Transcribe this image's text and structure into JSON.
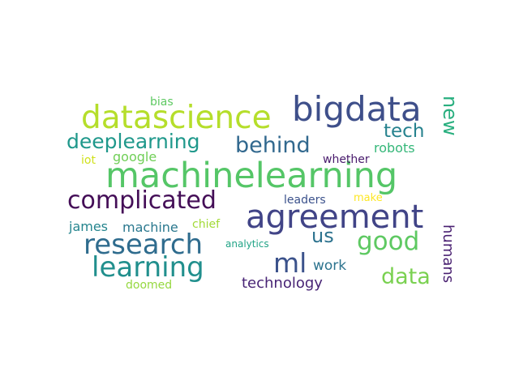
{
  "word_cloud": {
    "words": [
      {
        "text": "machinelearning",
        "color": "#55c667"
      },
      {
        "text": "agreement",
        "color": "#414487"
      },
      {
        "text": "bigdata",
        "color": "#3e4f8a"
      },
      {
        "text": "datascience",
        "color": "#b5de2b"
      },
      {
        "text": "complicated",
        "color": "#440e57"
      },
      {
        "text": "research",
        "color": "#2f6c8e"
      },
      {
        "text": "learning",
        "color": "#218f8d"
      },
      {
        "text": "deeplearning",
        "color": "#1f988b"
      },
      {
        "text": "behind",
        "color": "#31688e"
      },
      {
        "text": "ml",
        "color": "#3b528b"
      },
      {
        "text": "good",
        "color": "#5ec962"
      },
      {
        "text": "data",
        "color": "#7ad151"
      },
      {
        "text": "us",
        "color": "#2c728e"
      },
      {
        "text": "tech",
        "color": "#26828e"
      },
      {
        "text": "new",
        "color": "#29af7f"
      },
      {
        "text": "humans",
        "color": "#481f70"
      },
      {
        "text": "technology",
        "color": "#482475"
      },
      {
        "text": "work",
        "color": "#2c738e"
      },
      {
        "text": "robots",
        "color": "#35b779"
      },
      {
        "text": "google",
        "color": "#70cf57"
      },
      {
        "text": "machine",
        "color": "#2a788e"
      },
      {
        "text": "james",
        "color": "#25858e"
      },
      {
        "text": "chief",
        "color": "#a2da37"
      },
      {
        "text": "leaders",
        "color": "#3b518b"
      },
      {
        "text": "make",
        "color": "#fde725"
      },
      {
        "text": "whether",
        "color": "#481a6c"
      },
      {
        "text": "analytics",
        "color": "#20a386"
      },
      {
        "text": "doomed",
        "color": "#95d840"
      },
      {
        "text": "bias",
        "color": "#5ec962"
      },
      {
        "text": "iot",
        "color": "#d0e11c"
      }
    ]
  }
}
